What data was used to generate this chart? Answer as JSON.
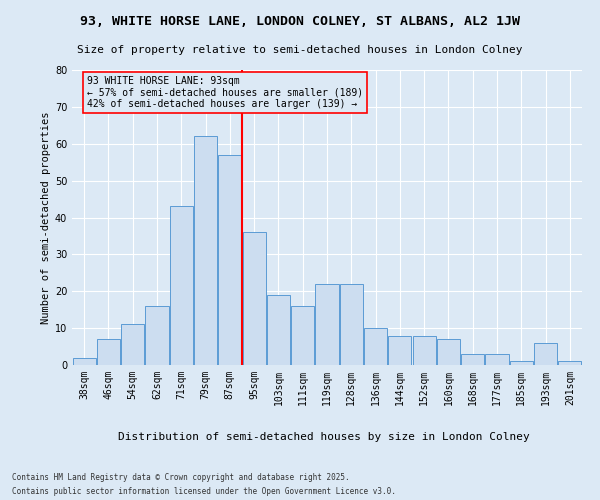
{
  "title": "93, WHITE HORSE LANE, LONDON COLNEY, ST ALBANS, AL2 1JW",
  "subtitle": "Size of property relative to semi-detached houses in London Colney",
  "xlabel": "Distribution of semi-detached houses by size in London Colney",
  "ylabel": "Number of semi-detached properties",
  "footnote1": "Contains HM Land Registry data © Crown copyright and database right 2025.",
  "footnote2": "Contains public sector information licensed under the Open Government Licence v3.0.",
  "annotation_line1": "93 WHITE HORSE LANE: 93sqm",
  "annotation_line2": "← 57% of semi-detached houses are smaller (189)",
  "annotation_line3": "42% of semi-detached houses are larger (139) →",
  "bar_color": "#ccddf0",
  "bar_edge_color": "#5b9bd5",
  "background_color": "#dce9f5",
  "grid_color": "#ffffff",
  "vline_color": "red",
  "categories": [
    "38sqm",
    "46sqm",
    "54sqm",
    "62sqm",
    "71sqm",
    "79sqm",
    "87sqm",
    "95sqm",
    "103sqm",
    "111sqm",
    "119sqm",
    "128sqm",
    "136sqm",
    "144sqm",
    "152sqm",
    "160sqm",
    "168sqm",
    "177sqm",
    "185sqm",
    "193sqm",
    "201sqm"
  ],
  "values": [
    2,
    7,
    11,
    16,
    43,
    62,
    57,
    36,
    19,
    16,
    22,
    22,
    10,
    8,
    8,
    7,
    3,
    3,
    1,
    6,
    1
  ],
  "ylim": [
    0,
    80
  ],
  "yticks": [
    0,
    10,
    20,
    30,
    40,
    50,
    60,
    70,
    80
  ],
  "title_fontsize": 9.5,
  "subtitle_fontsize": 8,
  "ylabel_fontsize": 7.5,
  "xlabel_fontsize": 8,
  "tick_fontsize": 7,
  "annotation_fontsize": 7,
  "footnote_fontsize": 5.5
}
